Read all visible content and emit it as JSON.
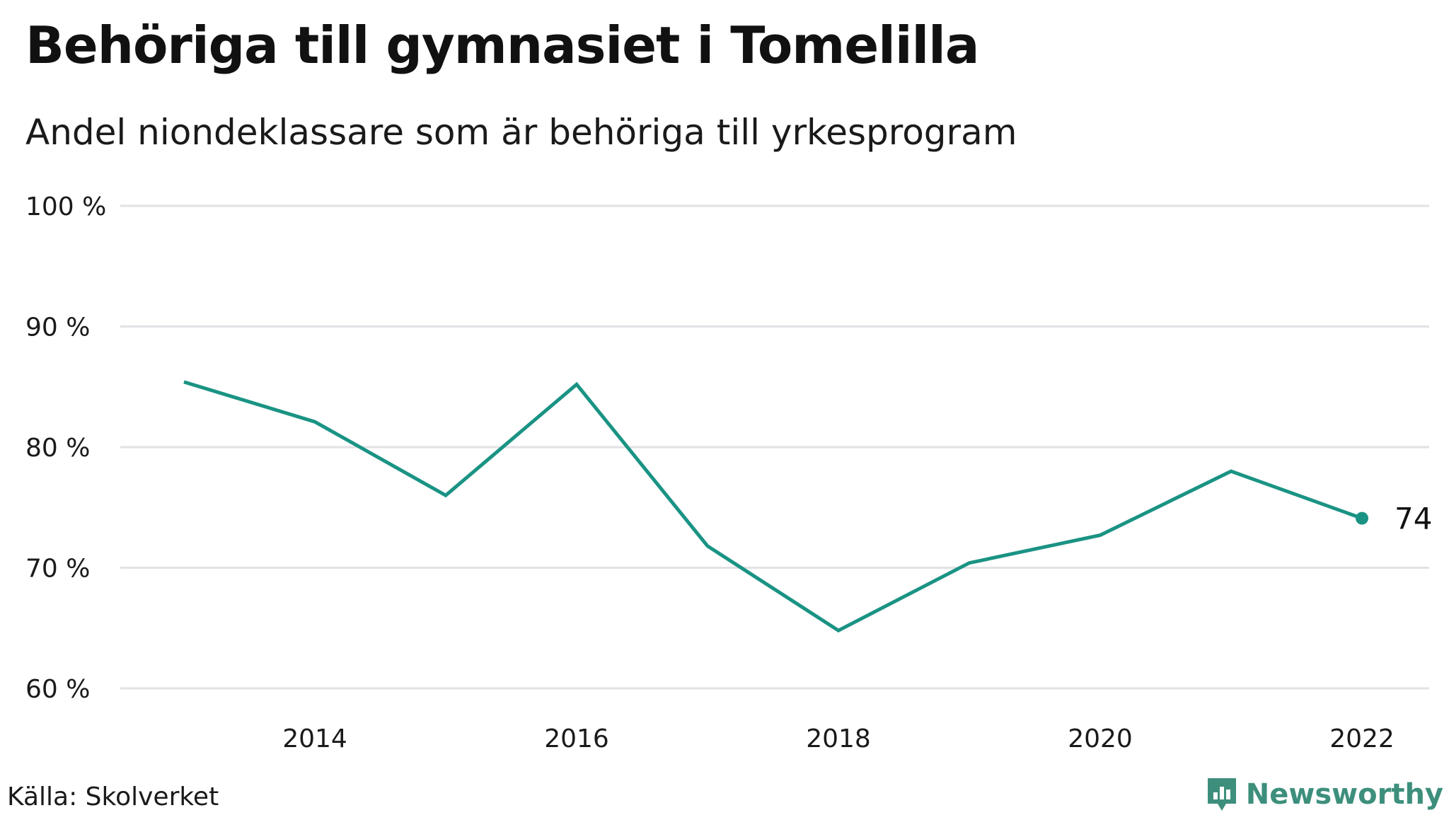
{
  "title": "Behöriga till gymnasiet i Tomelilla",
  "subtitle": "Andel niondeklassare som är behöriga till yrkesprogram",
  "source": "Källa: Skolverket",
  "brand": {
    "name": "Newsworthy",
    "icon": "newsworthy-logo-icon",
    "color": "#3d8f7c"
  },
  "chart_data": {
    "type": "line",
    "x": [
      2013,
      2014,
      2015,
      2016,
      2017,
      2018,
      2019,
      2020,
      2021,
      2022
    ],
    "series": [
      {
        "values": [
          85.4,
          82.1,
          76.0,
          85.2,
          71.8,
          64.8,
          70.4,
          72.7,
          78.0,
          74.1
        ],
        "color": "#1a9384"
      }
    ],
    "ylim": [
      60,
      100
    ],
    "xlim": [
      2013,
      2023
    ],
    "yticks": [
      60,
      70,
      80,
      90,
      100
    ],
    "ytick_labels": [
      "60 %",
      "70 %",
      "80 %",
      "90 %",
      "100 %"
    ],
    "xticks": [
      2014,
      2016,
      2018,
      2020,
      2022
    ],
    "xtick_labels": [
      "2014",
      "2016",
      "2018",
      "2020",
      "2022"
    ],
    "end_label": "74  %",
    "grid": true,
    "gridline_color": "#e2e2e6"
  }
}
